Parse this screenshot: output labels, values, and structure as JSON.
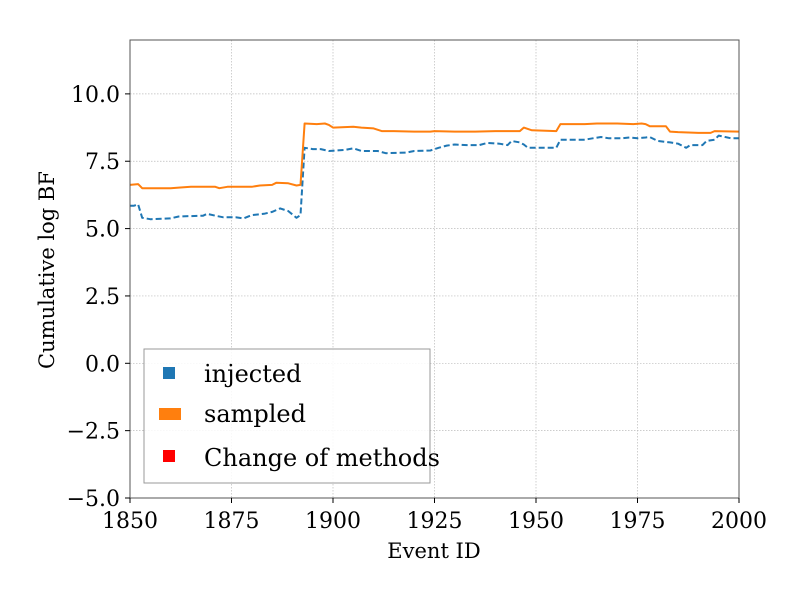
{
  "chart_data": {
    "type": "line",
    "xlabel": "Event ID",
    "ylabel": "Cumulative log BF",
    "xlim": [
      1850,
      2000
    ],
    "ylim": [
      -5.0,
      12.0
    ],
    "x_ticks": [
      1850,
      1875,
      1900,
      1925,
      1950,
      1975,
      2000
    ],
    "x_tick_labels": [
      "1850",
      "1875",
      "1900",
      "1925",
      "1950",
      "1975",
      "2000"
    ],
    "y_ticks": [
      -5.0,
      -2.5,
      0.0,
      2.5,
      5.0,
      7.5,
      10.0
    ],
    "y_tick_labels": [
      "−5.0",
      "−2.5",
      "0.0",
      "2.5",
      "5.0",
      "7.5",
      "10.0"
    ],
    "grid": true,
    "legend": {
      "placement": "lower-left",
      "entries": [
        {
          "label": "injected",
          "color": "#1f77b4"
        },
        {
          "label": "sampled",
          "color": "#ff7f0e"
        },
        {
          "label": "Change of methods",
          "color": "#ff0000"
        }
      ]
    },
    "series": [
      {
        "name": "injected",
        "color": "#1f77b4",
        "style": "dashed",
        "points": [
          [
            1850,
            5.85
          ],
          [
            1851,
            5.85
          ],
          [
            1852,
            5.9
          ],
          [
            1853,
            5.4
          ],
          [
            1855,
            5.35
          ],
          [
            1860,
            5.38
          ],
          [
            1862,
            5.45
          ],
          [
            1868,
            5.48
          ],
          [
            1869,
            5.55
          ],
          [
            1871,
            5.48
          ],
          [
            1873,
            5.42
          ],
          [
            1876,
            5.42
          ],
          [
            1878,
            5.38
          ],
          [
            1880,
            5.5
          ],
          [
            1883,
            5.55
          ],
          [
            1885,
            5.62
          ],
          [
            1887,
            5.75
          ],
          [
            1889,
            5.65
          ],
          [
            1891,
            5.4
          ],
          [
            1892,
            5.5
          ],
          [
            1893,
            8.0
          ],
          [
            1895,
            7.95
          ],
          [
            1897,
            7.95
          ],
          [
            1899,
            7.88
          ],
          [
            1903,
            7.92
          ],
          [
            1905,
            7.98
          ],
          [
            1907,
            7.88
          ],
          [
            1911,
            7.88
          ],
          [
            1913,
            7.8
          ],
          [
            1918,
            7.82
          ],
          [
            1920,
            7.88
          ],
          [
            1924,
            7.9
          ],
          [
            1926,
            8.0
          ],
          [
            1928,
            8.08
          ],
          [
            1930,
            8.12
          ],
          [
            1933,
            8.1
          ],
          [
            1936,
            8.1
          ],
          [
            1938,
            8.18
          ],
          [
            1941,
            8.15
          ],
          [
            1943,
            8.1
          ],
          [
            1944,
            8.25
          ],
          [
            1946,
            8.2
          ],
          [
            1947,
            8.12
          ],
          [
            1948,
            8.0
          ],
          [
            1955,
            8.0
          ],
          [
            1956,
            8.3
          ],
          [
            1962,
            8.3
          ],
          [
            1964,
            8.35
          ],
          [
            1966,
            8.4
          ],
          [
            1968,
            8.35
          ],
          [
            1971,
            8.35
          ],
          [
            1973,
            8.38
          ],
          [
            1975,
            8.35
          ],
          [
            1977,
            8.38
          ],
          [
            1978,
            8.4
          ],
          [
            1980,
            8.25
          ],
          [
            1983,
            8.2
          ],
          [
            1985,
            8.15
          ],
          [
            1987,
            8.0
          ],
          [
            1988,
            8.1
          ],
          [
            1991,
            8.1
          ],
          [
            1992,
            8.25
          ],
          [
            1994,
            8.3
          ],
          [
            1995,
            8.45
          ],
          [
            1998,
            8.35
          ],
          [
            2000,
            8.35
          ]
        ]
      },
      {
        "name": "sampled",
        "color": "#ff7f0e",
        "style": "solid",
        "points": [
          [
            1850,
            6.62
          ],
          [
            1852,
            6.65
          ],
          [
            1853,
            6.5
          ],
          [
            1857,
            6.5
          ],
          [
            1860,
            6.5
          ],
          [
            1862,
            6.52
          ],
          [
            1865,
            6.55
          ],
          [
            1868,
            6.55
          ],
          [
            1871,
            6.55
          ],
          [
            1872,
            6.5
          ],
          [
            1874,
            6.55
          ],
          [
            1880,
            6.55
          ],
          [
            1882,
            6.6
          ],
          [
            1885,
            6.62
          ],
          [
            1886,
            6.7
          ],
          [
            1889,
            6.68
          ],
          [
            1891,
            6.6
          ],
          [
            1892,
            6.62
          ],
          [
            1893,
            8.9
          ],
          [
            1896,
            8.88
          ],
          [
            1898,
            8.9
          ],
          [
            1899,
            8.85
          ],
          [
            1900,
            8.75
          ],
          [
            1905,
            8.78
          ],
          [
            1907,
            8.75
          ],
          [
            1910,
            8.72
          ],
          [
            1912,
            8.62
          ],
          [
            1915,
            8.62
          ],
          [
            1920,
            8.6
          ],
          [
            1924,
            8.6
          ],
          [
            1925,
            8.62
          ],
          [
            1930,
            8.6
          ],
          [
            1935,
            8.6
          ],
          [
            1940,
            8.62
          ],
          [
            1946,
            8.62
          ],
          [
            1947,
            8.75
          ],
          [
            1949,
            8.65
          ],
          [
            1955,
            8.62
          ],
          [
            1956,
            8.88
          ],
          [
            1962,
            8.88
          ],
          [
            1965,
            8.9
          ],
          [
            1970,
            8.9
          ],
          [
            1974,
            8.88
          ],
          [
            1976,
            8.9
          ],
          [
            1977,
            8.88
          ],
          [
            1978,
            8.8
          ],
          [
            1982,
            8.8
          ],
          [
            1983,
            8.6
          ],
          [
            1985,
            8.58
          ],
          [
            1990,
            8.55
          ],
          [
            1993,
            8.55
          ],
          [
            1994,
            8.62
          ],
          [
            2000,
            8.6
          ]
        ]
      }
    ]
  }
}
